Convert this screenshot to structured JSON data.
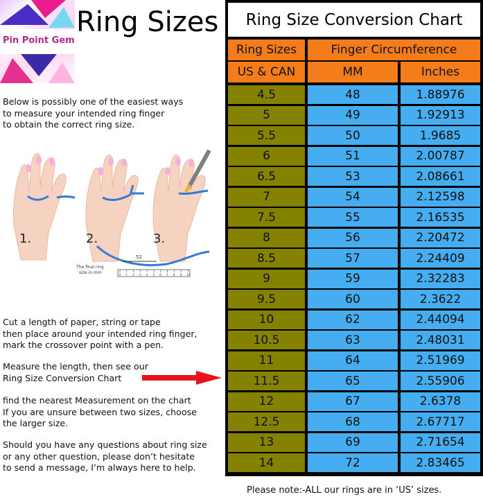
{
  "brand": {
    "logo_text": "Pin Point Gem"
  },
  "page_title": "Ring Sizes",
  "intro_lines": [
    "Below is possibly one of the easiest ways",
    "to measure your intended ring finger",
    "to obtain the correct ring size."
  ],
  "illustration": {
    "steps": [
      "1.",
      "2.",
      "3."
    ],
    "ruler_value": "52",
    "caption_lines": [
      "The final ring",
      "size in mm"
    ],
    "ruler_ticks": [
      "0",
      "1",
      "2",
      "3",
      "4",
      "5",
      "6",
      "7",
      "8",
      "9",
      "10"
    ]
  },
  "instructions_1": [
    "Cut a length of paper, string or tape",
    "then place around your intended ring finger,",
    "mark the crossover point with a pen."
  ],
  "instructions_2": [
    "Measure the length, then see our",
    "Ring Size Conversion Chart"
  ],
  "instructions_3": [
    "find the nearest Measurement on the chart",
    "If you are unsure between two sizes, choose",
    "the larger size."
  ],
  "instructions_4": [
    "Should you have any questions about ring size",
    "or any other question, please don’t hesitate",
    "to send a message, I’m always here to help."
  ],
  "chart": {
    "title": "Ring Size Conversion Chart",
    "header_ring_sizes": "Ring Sizes",
    "header_finger_circumference": "Finger Circumference",
    "sub_header_us_can": "US & CAN",
    "sub_header_mm": "MM",
    "sub_header_inches": "Inches",
    "rows": [
      [
        "4.5",
        "48",
        "1.88976"
      ],
      [
        "5",
        "49",
        "1.92913"
      ],
      [
        "5.5",
        "50",
        "1.9685"
      ],
      [
        "6",
        "51",
        "2.00787"
      ],
      [
        "6.5",
        "53",
        "2.08661"
      ],
      [
        "7",
        "54",
        "2.12598"
      ],
      [
        "7.5",
        "55",
        "2.16535"
      ],
      [
        "8",
        "56",
        "2.20472"
      ],
      [
        "8.5",
        "57",
        "2.24409"
      ],
      [
        "9",
        "59",
        "2.32283"
      ],
      [
        "9.5",
        "60",
        "2.3622"
      ],
      [
        "10",
        "62",
        "2.44094"
      ],
      [
        "10.5",
        "63",
        "2.48031"
      ],
      [
        "11",
        "64",
        "2.51969"
      ],
      [
        "11.5",
        "65",
        "2.55906"
      ],
      [
        "12",
        "67",
        "2.6378"
      ],
      [
        "12.5",
        "68",
        "2.67717"
      ],
      [
        "13",
        "69",
        "2.71654"
      ],
      [
        "14",
        "72",
        "2.83465"
      ]
    ]
  },
  "footer_note": "Please note:-ALL our rings are in ‘US’ sizes.",
  "colors": {
    "header_orange": "#f47c1b",
    "size_olive": "#848200",
    "value_blue": "#46aef0",
    "arrow_red": "#e8141b",
    "brand_magenta": "#b22a8d"
  }
}
